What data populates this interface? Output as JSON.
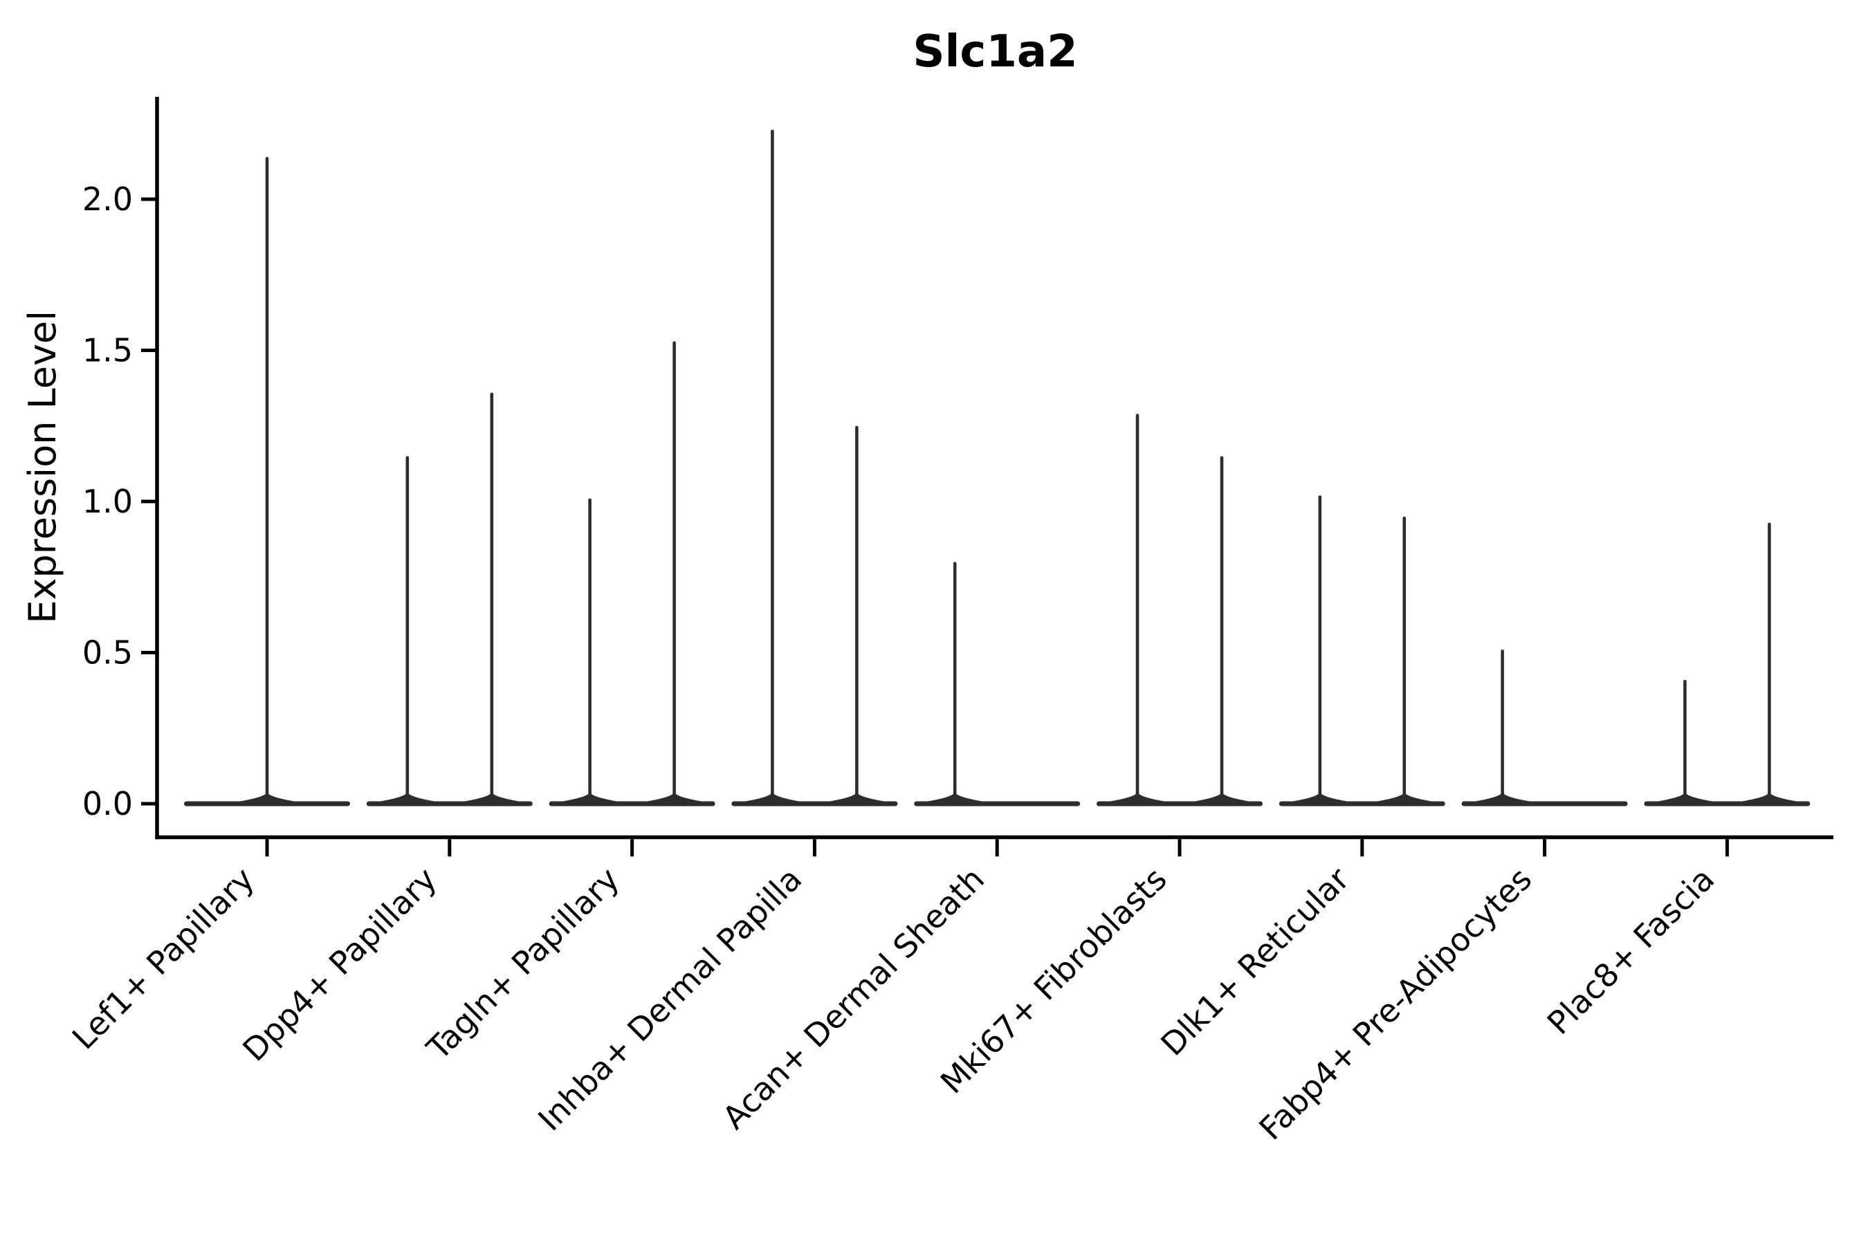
{
  "chart_data": {
    "type": "violin",
    "title": "Slc1a2",
    "xlabel": "",
    "ylabel": "Expression Level",
    "yticks": [
      0.0,
      0.5,
      1.0,
      1.5,
      2.0
    ],
    "ytick_labels": [
      "0.0",
      "0.5",
      "1.0",
      "1.5",
      "2.0"
    ],
    "ylim": [
      -0.11,
      2.34
    ],
    "grid": false,
    "legend": null,
    "categories": [
      "Lef1+ Papillary",
      "Dpp4+ Papillary",
      "Tagln+ Papillary",
      "Inhba+ Dermal Papilla",
      "Acan+ Dermal Sheath",
      "Mki67+ Fibroblasts",
      "Dlk1+ Reticular",
      "Fabp4+ Pre-Adipocytes",
      "Plac8+ Fascia"
    ],
    "violins": [
      {
        "category": "Lef1+ Papillary",
        "spikes": [
          {
            "position": "center",
            "max": 2.14
          }
        ]
      },
      {
        "category": "Dpp4+ Papillary",
        "spikes": [
          {
            "position": "left",
            "max": 1.15
          },
          {
            "position": "right",
            "max": 1.36
          }
        ]
      },
      {
        "category": "Tagln+ Papillary",
        "spikes": [
          {
            "position": "left",
            "max": 1.01
          },
          {
            "position": "right",
            "max": 1.53
          }
        ]
      },
      {
        "category": "Inhba+ Dermal Papilla",
        "spikes": [
          {
            "position": "left",
            "max": 2.23
          },
          {
            "position": "right",
            "max": 1.25
          }
        ]
      },
      {
        "category": "Acan+ Dermal Sheath",
        "spikes": [
          {
            "position": "left",
            "max": 0.8
          }
        ]
      },
      {
        "category": "Mki67+ Fibroblasts",
        "spikes": [
          {
            "position": "left",
            "max": 1.29
          },
          {
            "position": "right",
            "max": 1.15
          }
        ]
      },
      {
        "category": "Dlk1+ Reticular",
        "spikes": [
          {
            "position": "left",
            "max": 1.02
          },
          {
            "position": "right",
            "max": 0.95
          }
        ]
      },
      {
        "category": "Fabp4+ Pre-Adipocytes",
        "spikes": [
          {
            "position": "left",
            "max": 0.51
          }
        ]
      },
      {
        "category": "Plac8+ Fascia",
        "spikes": [
          {
            "position": "left",
            "max": 0.41
          },
          {
            "position": "right",
            "max": 0.93
          }
        ]
      }
    ],
    "style": {
      "violin_color": "#2d2d2d",
      "axis_color": "#000000",
      "text_color": "#000000",
      "background": "#ffffff",
      "title_bold": true
    }
  }
}
